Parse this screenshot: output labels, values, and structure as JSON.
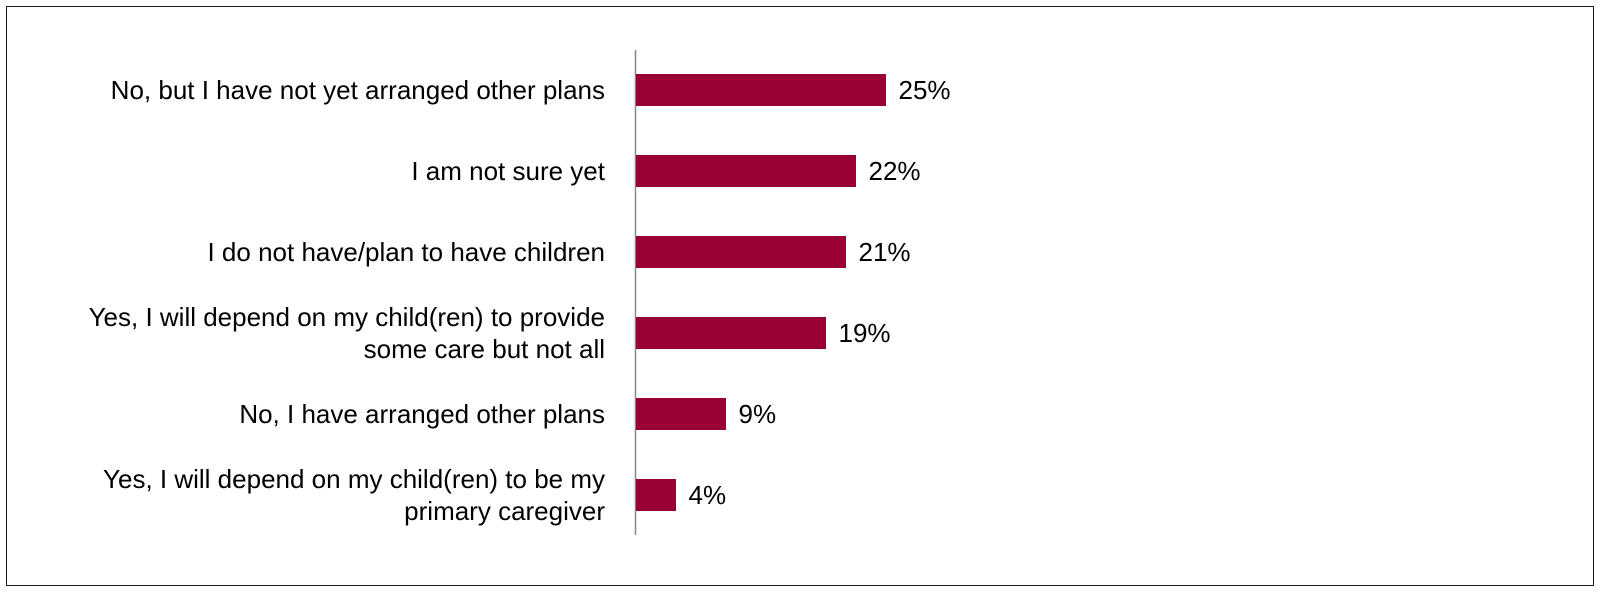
{
  "chart_data": {
    "type": "bar",
    "orientation": "horizontal",
    "title": "",
    "xlabel": "",
    "ylabel": "",
    "categories": [
      [
        "No, but I have not yet arranged other plans"
      ],
      [
        "I am not sure yet"
      ],
      [
        "I do not have/plan to have children"
      ],
      [
        "Yes, I will depend on my child(ren) to provide",
        "some care but not all"
      ],
      [
        "No, I have arranged other plans"
      ],
      [
        "Yes, I will depend on my child(ren) to be my",
        "primary caregiver"
      ]
    ],
    "values": [
      25,
      22,
      21,
      19,
      9,
      4
    ],
    "value_labels": [
      "25%",
      "22%",
      "21%",
      "19%",
      "9%",
      "4%"
    ],
    "unit": "%",
    "xlim": [
      0,
      100
    ],
    "grid": false,
    "legend": "none",
    "bar_color": "#990033",
    "axis_color": "#888888"
  }
}
